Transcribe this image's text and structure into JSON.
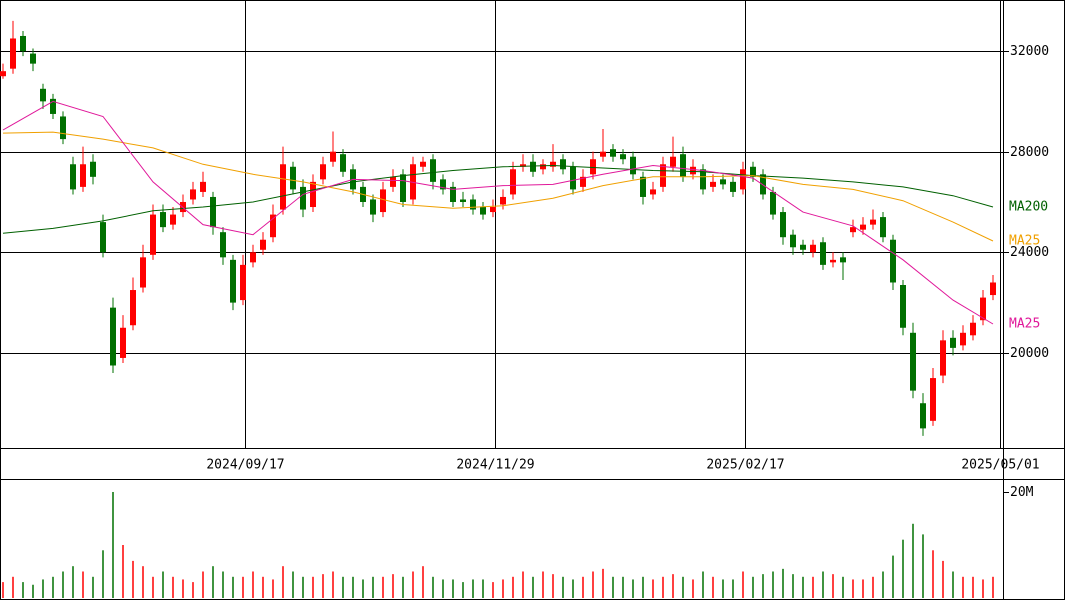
{
  "chart_data": {
    "type": "candlestick",
    "xlim": [
      -0.3,
      100.0
    ],
    "xticks": [
      {
        "value": 24.2,
        "label": "2024/09/17"
      },
      {
        "value": 49.2,
        "label": "2024/11/29"
      },
      {
        "value": 74.2,
        "label": "2025/02/17"
      },
      {
        "value": 99.7,
        "label": "2025/05/01"
      }
    ],
    "ylim": [
      16220,
      34030
    ],
    "yticks": [
      20000,
      24000,
      28000,
      32000
    ],
    "up_color": "#ff0000",
    "down_color": "#007000",
    "open": [
      31000,
      31300,
      32600,
      31900,
      30500,
      30100,
      29400,
      27500,
      26600,
      27600,
      25200,
      21800,
      19800,
      21100,
      22600,
      23900,
      25600,
      25100,
      25600,
      26100,
      26400,
      26200,
      24800,
      23700,
      22100,
      23600,
      24100,
      24600,
      25700,
      27400,
      26600,
      25800,
      26900,
      27600,
      27900,
      27300,
      26600,
      26100,
      25600,
      26600,
      27100,
      26100,
      27400,
      27700,
      26900,
      26600,
      26100,
      26100,
      25800,
      25600,
      25900,
      26300,
      27400,
      27600,
      27300,
      27400,
      27700,
      27400,
      26600,
      27100,
      27800,
      28100,
      27900,
      27800,
      27000,
      26300,
      26600,
      27400,
      27900,
      27100,
      27300,
      26600,
      26900,
      26800,
      26500,
      27400,
      27100,
      26400,
      25600,
      24700,
      24300,
      24000,
      24400,
      23600,
      23800,
      24800,
      24900,
      25100,
      25400,
      24500,
      22700,
      20800,
      18000,
      17300,
      19100,
      20600,
      20300,
      20700,
      21300,
      22300
    ],
    "high": [
      31500,
      33200,
      32800,
      32100,
      30700,
      30300,
      29600,
      27800,
      28200,
      27900,
      25500,
      22200,
      21500,
      23000,
      24300,
      25900,
      25900,
      25800,
      26300,
      26800,
      27200,
      26400,
      25000,
      23900,
      23900,
      24300,
      24800,
      25900,
      28200,
      27600,
      26900,
      27100,
      27800,
      28800,
      28100,
      27500,
      26800,
      26300,
      26800,
      27300,
      27300,
      27800,
      27800,
      27900,
      27100,
      26800,
      26400,
      26300,
      26000,
      26100,
      26500,
      27600,
      27900,
      27900,
      27700,
      28300,
      27900,
      27600,
      27300,
      28000,
      28900,
      28300,
      28100,
      28000,
      27200,
      26800,
      27800,
      28600,
      28200,
      27700,
      27500,
      27100,
      27100,
      27000,
      27600,
      27600,
      27300,
      26600,
      25800,
      24900,
      24500,
      24500,
      24600,
      24000,
      24000,
      25300,
      25400,
      25700,
      25600,
      24700,
      22900,
      21200,
      18400,
      19400,
      20900,
      20900,
      21100,
      21500,
      22500,
      23100
    ],
    "low": [
      30900,
      31100,
      31800,
      31200,
      29700,
      29300,
      28300,
      26300,
      26400,
      26700,
      23800,
      19200,
      19600,
      20900,
      22400,
      23700,
      24800,
      24900,
      25400,
      25900,
      26200,
      24700,
      23500,
      21700,
      21900,
      23400,
      23900,
      24400,
      25500,
      26300,
      25400,
      25600,
      26700,
      27400,
      27000,
      26300,
      25800,
      25200,
      25400,
      26400,
      25800,
      25900,
      27200,
      26500,
      26300,
      25800,
      25800,
      25500,
      25300,
      25400,
      25700,
      26100,
      27200,
      27000,
      27100,
      27200,
      27100,
      26300,
      26400,
      26900,
      27600,
      27600,
      27500,
      26900,
      25900,
      26100,
      26400,
      27200,
      26800,
      26900,
      26300,
      26400,
      26500,
      26200,
      26300,
      26800,
      26100,
      25300,
      24300,
      23900,
      23900,
      23800,
      23300,
      23400,
      22900,
      24600,
      24700,
      24900,
      24400,
      22500,
      20700,
      18200,
      16700,
      17100,
      18800,
      19900,
      20100,
      20500,
      21100,
      22100
    ],
    "close": [
      31200,
      32500,
      32000,
      31500,
      30000,
      29500,
      28500,
      26500,
      27500,
      27000,
      24000,
      19500,
      21000,
      22500,
      23800,
      25500,
      25000,
      25500,
      26000,
      26500,
      26800,
      25000,
      23800,
      22000,
      23500,
      24000,
      24500,
      25500,
      27500,
      26500,
      25700,
      26800,
      27500,
      28000,
      27200,
      26500,
      26000,
      25500,
      26500,
      27000,
      26000,
      27500,
      27600,
      26800,
      26500,
      26000,
      26000,
      25700,
      25500,
      25800,
      26200,
      27300,
      27500,
      27200,
      27500,
      27600,
      27300,
      26500,
      27000,
      27700,
      28000,
      27800,
      27700,
      27100,
      26200,
      26500,
      27500,
      27800,
      27000,
      27400,
      26500,
      26800,
      26700,
      26400,
      27300,
      27000,
      26300,
      25500,
      24600,
      24200,
      24100,
      24300,
      23500,
      23700,
      23600,
      25000,
      25100,
      25300,
      24600,
      22800,
      21000,
      18500,
      17000,
      19000,
      20500,
      20200,
      20800,
      21200,
      22200,
      22800
    ],
    "moving_averages": [
      {
        "name": "MA200",
        "color": "#006000",
        "x": [
          0,
          5,
          10,
          15,
          20,
          25,
          30,
          35,
          40,
          45,
          50,
          55,
          60,
          65,
          70,
          75,
          80,
          85,
          90,
          95,
          99
        ],
        "values": [
          24760,
          24950,
          25250,
          25650,
          25800,
          26000,
          26400,
          26800,
          27050,
          27250,
          27400,
          27450,
          27350,
          27250,
          27200,
          27050,
          26950,
          26800,
          26600,
          26250,
          25800
        ]
      },
      {
        "name": "MA25",
        "color": "#f0a000",
        "x": [
          0,
          5,
          10,
          15,
          20,
          25,
          30,
          35,
          40,
          45,
          50,
          55,
          60,
          65,
          70,
          75,
          80,
          85,
          90,
          95,
          99
        ],
        "values": [
          28740,
          28780,
          28500,
          28150,
          27500,
          27100,
          26800,
          26400,
          25900,
          25750,
          25850,
          26150,
          26650,
          27000,
          27000,
          27050,
          26700,
          26500,
          26050,
          25200,
          24450
        ]
      },
      {
        "name": "MA25",
        "color": "#e0189a",
        "x": [
          0,
          5,
          10,
          15,
          20,
          25,
          30,
          35,
          40,
          45,
          50,
          55,
          60,
          65,
          70,
          75,
          80,
          85,
          90,
          95,
          99
        ],
        "values": [
          28860,
          30000,
          29400,
          26800,
          25100,
          24700,
          26300,
          26900,
          26850,
          26500,
          26650,
          26700,
          27100,
          27450,
          27250,
          26950,
          25600,
          25050,
          23700,
          22100,
          21150
        ]
      }
    ],
    "volume": [
      3,
      4,
      3,
      2.5,
      3.5,
      4,
      5,
      6,
      5,
      4,
      9,
      20,
      10,
      7,
      6,
      4,
      5,
      4,
      3.5,
      3,
      5,
      6,
      5,
      4,
      4,
      5,
      4,
      3.5,
      6,
      5,
      4,
      4,
      4.5,
      5,
      4,
      4,
      3.5,
      4,
      4,
      4.5,
      4,
      5,
      6,
      4,
      3.5,
      3.5,
      3,
      3.5,
      3.5,
      3,
      3.5,
      4,
      5,
      4,
      5,
      4.5,
      4,
      3.5,
      4,
      5,
      5.5,
      4,
      4,
      3.5,
      4,
      3.5,
      4,
      4.5,
      4,
      3.5,
      5,
      4,
      3.5,
      3.5,
      5,
      4,
      4.5,
      5,
      5.5,
      4.5,
      4,
      4,
      5,
      4.5,
      4,
      3.5,
      3.5,
      4,
      5,
      8,
      11,
      14,
      12,
      9,
      7,
      5,
      4,
      4,
      3.5,
      4
    ],
    "volume_ylim": [
      0,
      22.26
    ],
    "volume_ticks": [
      {
        "value": 20,
        "label": "20M"
      }
    ]
  }
}
